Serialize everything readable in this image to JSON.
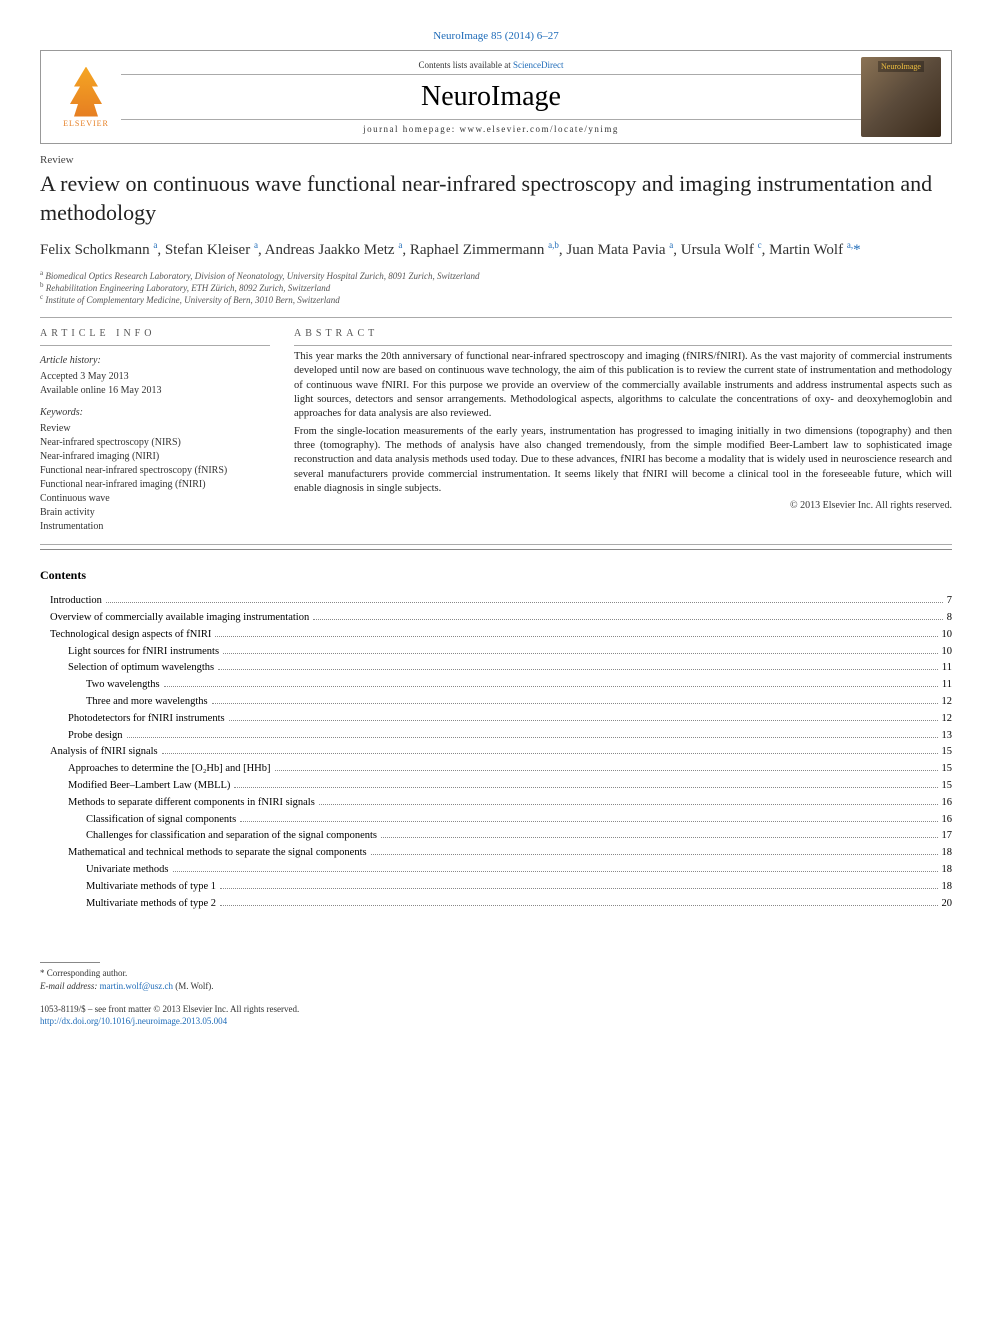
{
  "header": {
    "citation_prefix": "NeuroImage 85 (2014) 6–27",
    "citation_journal_link": "NeuroImage",
    "contents_line_prefix": "Contents lists available at ",
    "contents_link": "ScienceDirect",
    "journal_name": "NeuroImage",
    "homepage_prefix": "journal homepage: ",
    "homepage_url": "www.elsevier.com/locate/ynimg",
    "publisher_name": "ELSEVIER",
    "cover_label": "NeuroImage"
  },
  "article": {
    "type": "Review",
    "title": "A review on continuous wave functional near-infrared spectroscopy and imaging instrumentation and methodology",
    "authors_html": "Felix Scholkmann <sup>a</sup>, Stefan Kleiser <sup>a</sup>, Andreas Jaakko Metz <sup>a</sup>, Raphael Zimmermann <sup>a,b</sup>, Juan Mata Pavia <sup>a</sup>, Ursula Wolf <sup>c</sup>, Martin Wolf <sup>a,</sup><span class='star'>*</span>",
    "affiliations": [
      "a Biomedical Optics Research Laboratory, Division of Neonatology, University Hospital Zurich, 8091 Zurich, Switzerland",
      "b Rehabilitation Engineering Laboratory, ETH Zürich, 8092 Zurich, Switzerland",
      "c Institute of Complementary Medicine, University of Bern, 3010 Bern, Switzerland"
    ]
  },
  "info": {
    "heading": "article info",
    "history_heading": "Article history:",
    "accepted": "Accepted 3 May 2013",
    "available": "Available online 16 May 2013",
    "keywords_heading": "Keywords:",
    "keywords": [
      "Review",
      "Near-infrared spectroscopy (NIRS)",
      "Near-infrared imaging (NIRI)",
      "Functional near-infrared spectroscopy (fNIRS)",
      "Functional near-infrared imaging (fNIRI)",
      "Continuous wave",
      "Brain activity",
      "Instrumentation"
    ]
  },
  "abstract": {
    "heading": "abstract",
    "paragraphs": [
      "This year marks the 20th anniversary of functional near-infrared spectroscopy and imaging (fNIRS/fNIRI). As the vast majority of commercial instruments developed until now are based on continuous wave technology, the aim of this publication is to review the current state of instrumentation and methodology of continuous wave fNIRI. For this purpose we provide an overview of the commercially available instruments and address instrumental aspects such as light sources, detectors and sensor arrangements. Methodological aspects, algorithms to calculate the concentrations of oxy- and deoxyhemoglobin and approaches for data analysis are also reviewed.",
      "From the single-location measurements of the early years, instrumentation has progressed to imaging initially in two dimensions (topography) and then three (tomography). The methods of analysis have also changed tremendously, from the simple modified Beer-Lambert law to sophisticated image reconstruction and data analysis methods used today. Due to these advances, fNIRI has become a modality that is widely used in neuroscience research and several manufacturers provide commercial instrumentation. It seems likely that fNIRI will become a clinical tool in the foreseeable future, which will enable diagnosis in single subjects."
    ],
    "copyright": "© 2013 Elsevier Inc. All rights reserved."
  },
  "contents": {
    "heading": "Contents",
    "items": [
      {
        "label": "Introduction",
        "page": "7",
        "indent": 0
      },
      {
        "label": "Overview of commercially available imaging instrumentation",
        "page": "8",
        "indent": 0
      },
      {
        "label": "Technological design aspects of fNIRI",
        "page": "10",
        "indent": 0
      },
      {
        "label": "Light sources for fNIRI instruments",
        "page": "10",
        "indent": 1
      },
      {
        "label": "Selection of optimum wavelengths",
        "page": "11",
        "indent": 1
      },
      {
        "label": "Two wavelengths",
        "page": "11",
        "indent": 2
      },
      {
        "label": "Three and more wavelengths",
        "page": "12",
        "indent": 2
      },
      {
        "label": "Photodetectors for fNIRI instruments",
        "page": "12",
        "indent": 1
      },
      {
        "label": "Probe design",
        "page": "13",
        "indent": 1
      },
      {
        "label": "Analysis of fNIRI signals",
        "page": "15",
        "indent": 0
      },
      {
        "label": "Approaches to determine the [O₂Hb] and [HHb]",
        "page": "15",
        "indent": 1
      },
      {
        "label": "Modified Beer–Lambert Law (MBLL)",
        "page": "15",
        "indent": 1
      },
      {
        "label": "Methods to separate different components in fNIRI signals",
        "page": "16",
        "indent": 1
      },
      {
        "label": "Classification of signal components",
        "page": "16",
        "indent": 2
      },
      {
        "label": "Challenges for classification and separation of the signal components",
        "page": "17",
        "indent": 2
      },
      {
        "label": "Mathematical and technical methods to separate the signal components",
        "page": "18",
        "indent": 1
      },
      {
        "label": "Univariate methods",
        "page": "18",
        "indent": 2
      },
      {
        "label": "Multivariate methods of type 1",
        "page": "18",
        "indent": 2
      },
      {
        "label": "Multivariate methods of type 2",
        "page": "20",
        "indent": 2
      }
    ]
  },
  "footnote": {
    "corresponding": "* Corresponding author.",
    "email_label": "E-mail address: ",
    "email": "martin.wolf@usz.ch",
    "email_suffix": " (M. Wolf)."
  },
  "footer": {
    "line1": "1053-8119/$ – see front matter © 2013 Elsevier Inc. All rights reserved.",
    "doi": "http://dx.doi.org/10.1016/j.neuroimage.2013.05.004"
  },
  "colors": {
    "link": "#1e6bb8",
    "text": "#000000",
    "muted": "#555555",
    "border": "#888888"
  }
}
